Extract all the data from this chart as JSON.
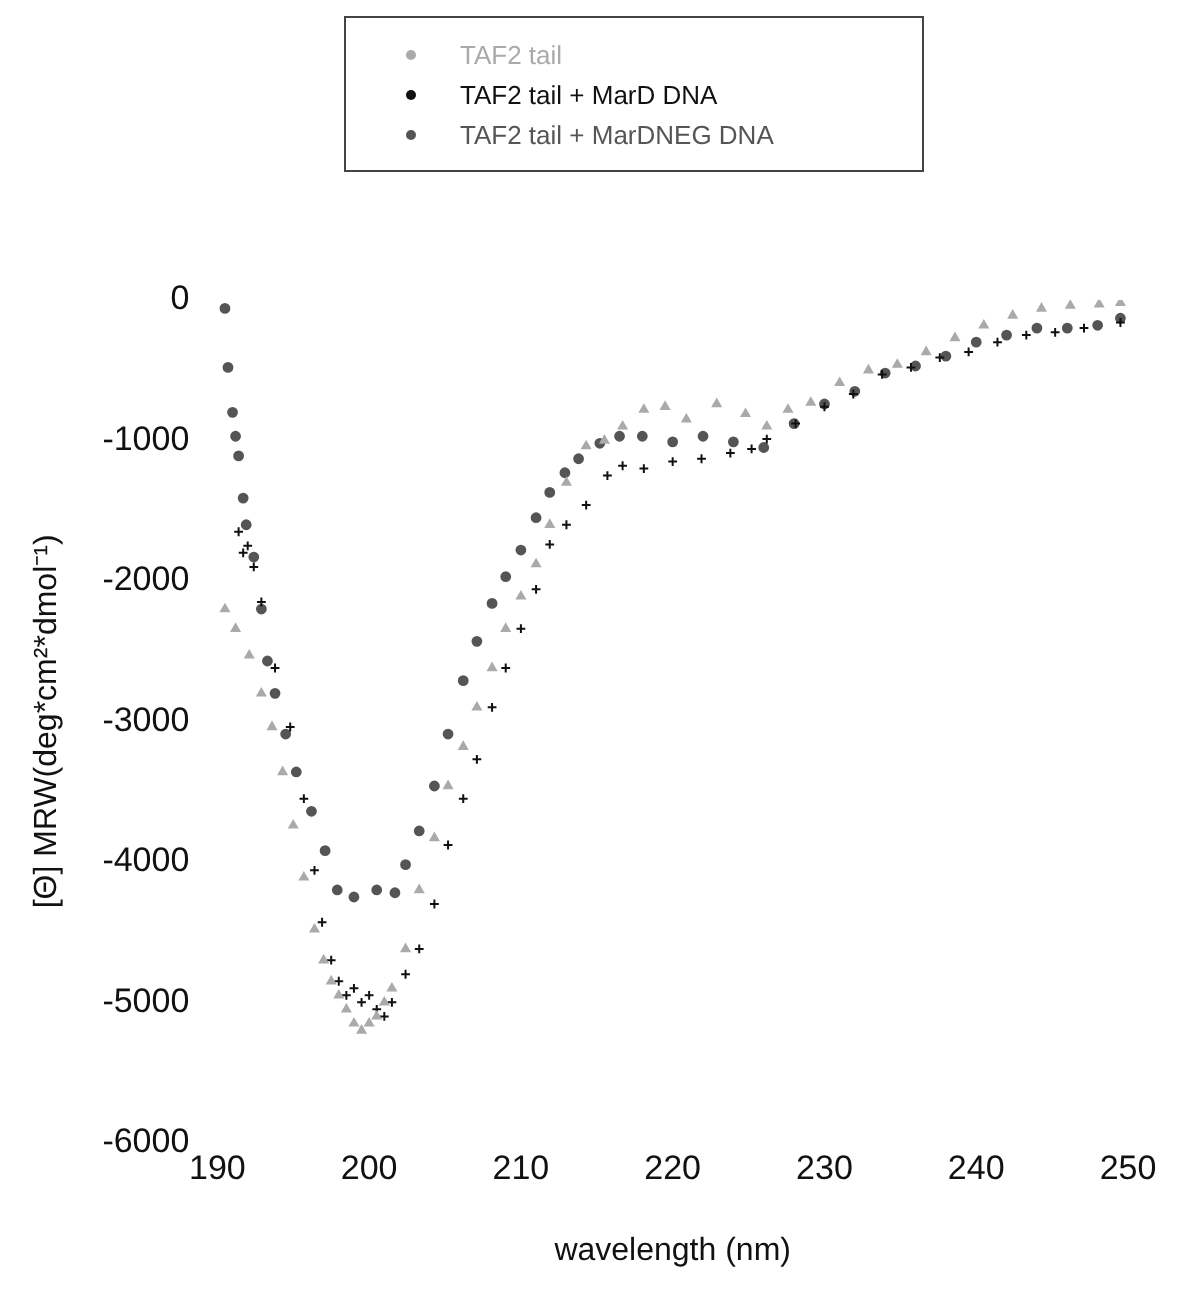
{
  "chart_data": {
    "type": "scatter",
    "xlabel": "wavelength (nm)",
    "ylabel": "[Θ] MRW(deg*cm²*dmol⁻¹)",
    "xlim": [
      190,
      250
    ],
    "xticks": [
      190,
      200,
      210,
      220,
      230,
      240,
      250
    ],
    "ylim": [
      -6000,
      0
    ],
    "yticks": [
      -6000,
      -5000,
      -4000,
      -3000,
      -2000,
      -1000,
      0
    ],
    "grid": false,
    "legend": "top",
    "series": [
      {
        "name": "TAF2 tail",
        "color": "#aaaaaa",
        "marker": "triangle",
        "x": [
          190.5,
          191.2,
          192.1,
          192.9,
          193.6,
          194.3,
          195,
          195.7,
          196.4,
          197,
          197.5,
          198,
          198.5,
          199,
          199.5,
          200,
          200.5,
          201,
          201.5,
          202.4,
          203.3,
          204.3,
          205.2,
          206.2,
          207.1,
          208.1,
          209,
          210,
          211,
          211.9,
          213,
          214.3,
          215.5,
          216.7,
          218.1,
          219.5,
          220.9,
          222.9,
          224.8,
          226.2,
          227.6,
          229.1,
          231,
          232.9,
          234.8,
          236.7,
          238.6,
          240.5,
          242.4,
          244.3,
          246.2,
          248.1,
          249.5
        ],
        "values": [
          -2200,
          -2340,
          -2530,
          -2800,
          -3040,
          -3360,
          -3740,
          -4110,
          -4480,
          -4700,
          -4850,
          -4950,
          -5050,
          -5150,
          -5200,
          -5150,
          -5100,
          -5000,
          -4900,
          -4620,
          -4200,
          -3830,
          -3460,
          -3180,
          -2900,
          -2620,
          -2340,
          -2110,
          -1880,
          -1600,
          -1300,
          -1040,
          -1000,
          -900,
          -780,
          -760,
          -850,
          -740,
          -810,
          -900,
          -780,
          -730,
          -590,
          -500,
          -460,
          -370,
          -270,
          -180,
          -110,
          -60,
          -40,
          -30,
          -20
        ]
      },
      {
        "name": "TAF2 tail + MarD DNA",
        "color": "#111111",
        "marker": "cross",
        "x": [
          191.4,
          191.7,
          192,
          192.4,
          192.9,
          193.8,
          194.8,
          195.7,
          196.4,
          196.9,
          197.5,
          198,
          198.5,
          199,
          199.5,
          200,
          200.5,
          201,
          201.5,
          202.4,
          203.3,
          204.3,
          205.2,
          206.2,
          207.1,
          208.1,
          209,
          210,
          211,
          211.9,
          213,
          214.3,
          215.7,
          216.7,
          218.1,
          220,
          221.9,
          223.8,
          225.2,
          226.2,
          228.1,
          230,
          231.9,
          233.8,
          235.7,
          237.6,
          239.5,
          241.4,
          243.3,
          245.2,
          247.1,
          249.5
        ],
        "values": [
          -1650,
          -1800,
          -1750,
          -1900,
          -2150,
          -2620,
          -3040,
          -3550,
          -4060,
          -4430,
          -4700,
          -4850,
          -4950,
          -4900,
          -5000,
          -4950,
          -5050,
          -5100,
          -5000,
          -4800,
          -4620,
          -4300,
          -3880,
          -3550,
          -3270,
          -2900,
          -2620,
          -2340,
          -2060,
          -1740,
          -1600,
          -1460,
          -1250,
          -1180,
          -1200,
          -1150,
          -1130,
          -1090,
          -1060,
          -990,
          -880,
          -760,
          -670,
          -530,
          -480,
          -410,
          -370,
          -300,
          -250,
          -230,
          -200,
          -160
        ]
      },
      {
        "name": "TAF2 tail + MarDNEG DNA",
        "color": "#555555",
        "marker": "circle",
        "x": [
          190.5,
          190.7,
          191,
          191.2,
          191.4,
          191.7,
          191.9,
          192.4,
          192.9,
          193.3,
          193.8,
          194.5,
          195.2,
          196.2,
          197.1,
          197.9,
          199,
          200.5,
          201.7,
          202.4,
          203.3,
          204.3,
          205.2,
          206.2,
          207.1,
          208.1,
          209,
          210,
          211,
          211.9,
          212.9,
          213.8,
          215.2,
          216.5,
          218,
          220,
          222,
          224,
          226,
          228,
          230,
          232,
          234,
          236,
          238,
          240,
          242,
          244,
          246,
          248,
          249.5
        ],
        "values": [
          -60,
          -480,
          -800,
          -970,
          -1110,
          -1410,
          -1600,
          -1830,
          -2200,
          -2570,
          -2800,
          -3090,
          -3360,
          -3640,
          -3920,
          -4200,
          -4250,
          -4200,
          -4220,
          -4020,
          -3780,
          -3460,
          -3090,
          -2710,
          -2430,
          -2160,
          -1970,
          -1780,
          -1550,
          -1370,
          -1230,
          -1130,
          -1020,
          -970,
          -970,
          -1010,
          -970,
          -1010,
          -1050,
          -880,
          -740,
          -650,
          -520,
          -470,
          -400,
          -300,
          -250,
          -200,
          -200,
          -180,
          -130
        ]
      }
    ]
  }
}
